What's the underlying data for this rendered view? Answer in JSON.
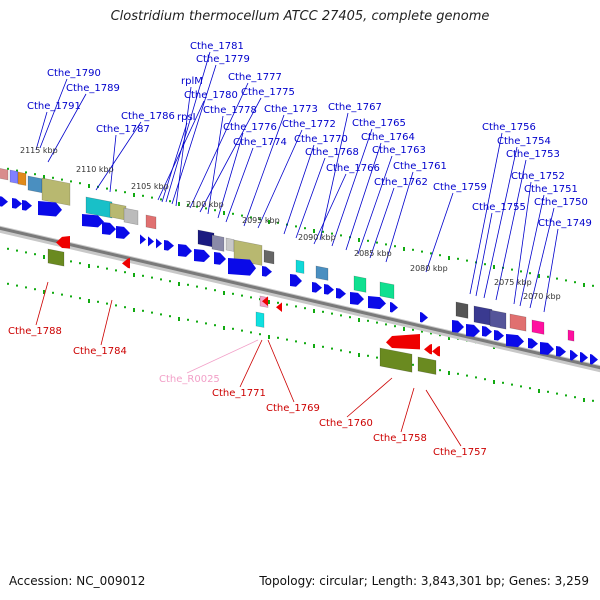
{
  "title": "Clostridium thermocellum ATCC 27405, complete genome",
  "footer": {
    "accession_label": "Accession:",
    "accession": "NC_009012",
    "topology_label": "Topology:",
    "topology": "circular",
    "length_label": "Length:",
    "length": "3,843,301 bp",
    "genes_label": "Genes:",
    "genes": "3,259"
  },
  "colors": {
    "forward_label": "#0000cc",
    "reverse_label": "#cc0000",
    "rna_label": "#f2a0c8",
    "backbone": "#888888",
    "dots": "#11aa11"
  },
  "kbp_labels": [
    "2115 kbp",
    "2110 kbp",
    "2105 kbp",
    "2100 kbp",
    "2095 kbp",
    "2090 kbp",
    "2085 kbp",
    "2080 kbp",
    "2075 kbp",
    "2070 kbp"
  ],
  "forward_genes": [
    "Cthe_1790",
    "Cthe_1789",
    "Cthe_1791",
    "Cthe_1781",
    "Cthe_1779",
    "rplM",
    "Cthe_1777",
    "Cthe_1780",
    "Cthe_1775",
    "rpsI",
    "Cthe_1778",
    "Cthe_1786",
    "Cthe_1787",
    "Cthe_1776",
    "Cthe_1773",
    "Cthe_1767",
    "Cthe_1772",
    "Cthe_1774",
    "Cthe_1770",
    "Cthe_1765",
    "Cthe_1768",
    "Cthe_1764",
    "Cthe_1766",
    "Cthe_1763",
    "Cthe_1761",
    "Cthe_1762",
    "Cthe_1759",
    "Cthe_1756",
    "Cthe_1754",
    "Cthe_1753",
    "Cthe_1752",
    "Cthe_1755",
    "Cthe_1751",
    "Cthe_1750",
    "Cthe_1749"
  ],
  "reverse_genes": [
    "Cthe_1788",
    "Cthe_1784",
    "Cthe_R0025",
    "Cthe_1771",
    "Cthe_1769",
    "Cthe_1760",
    "Cthe_1758",
    "Cthe_1757"
  ]
}
